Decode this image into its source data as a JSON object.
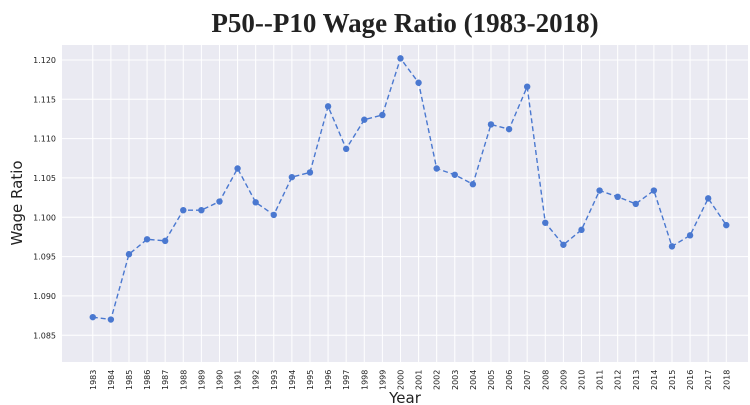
{
  "chart_data": {
    "type": "line",
    "title": "P50--P10 Wage Ratio (1983-2018)",
    "x_label": "Year",
    "y_label": "Wage Ratio",
    "x": [
      1983,
      1984,
      1985,
      1986,
      1987,
      1988,
      1989,
      1990,
      1991,
      1992,
      1993,
      1994,
      1995,
      1996,
      1997,
      1998,
      1999,
      2000,
      2001,
      2002,
      2003,
      2004,
      2005,
      2006,
      2007,
      2008,
      2009,
      2010,
      2011,
      2012,
      2013,
      2014,
      2015,
      2016,
      2017,
      2018
    ],
    "values": [
      1.0873,
      1.087,
      1.0953,
      1.0972,
      1.097,
      1.1009,
      1.1009,
      1.102,
      1.1062,
      1.1019,
      1.1003,
      1.1051,
      1.1057,
      1.1141,
      1.1087,
      1.1124,
      1.113,
      1.1202,
      1.1171,
      1.1062,
      1.1054,
      1.1042,
      1.1118,
      1.1112,
      1.1166,
      1.0993,
      1.0965,
      1.0984,
      1.1034,
      1.1026,
      1.1017,
      1.1034,
      1.0963,
      1.0977,
      1.1024,
      1.099
    ],
    "color": "#4a78d0",
    "line_style": "dashed",
    "grid": true,
    "xlim": [
      1981.3,
      2019.2
    ],
    "ylim": [
      1.0816,
      1.1219
    ],
    "yticks": [
      1.085,
      {
        "value": 1.09,
        "label": "1.090"
      },
      1.095,
      {
        "value": 1.1,
        "label": "1.100"
      },
      1.105,
      {
        "value": 1.11,
        "label": "1.110"
      },
      1.115,
      {
        "value": 1.12,
        "label": "1.120"
      }
    ]
  }
}
